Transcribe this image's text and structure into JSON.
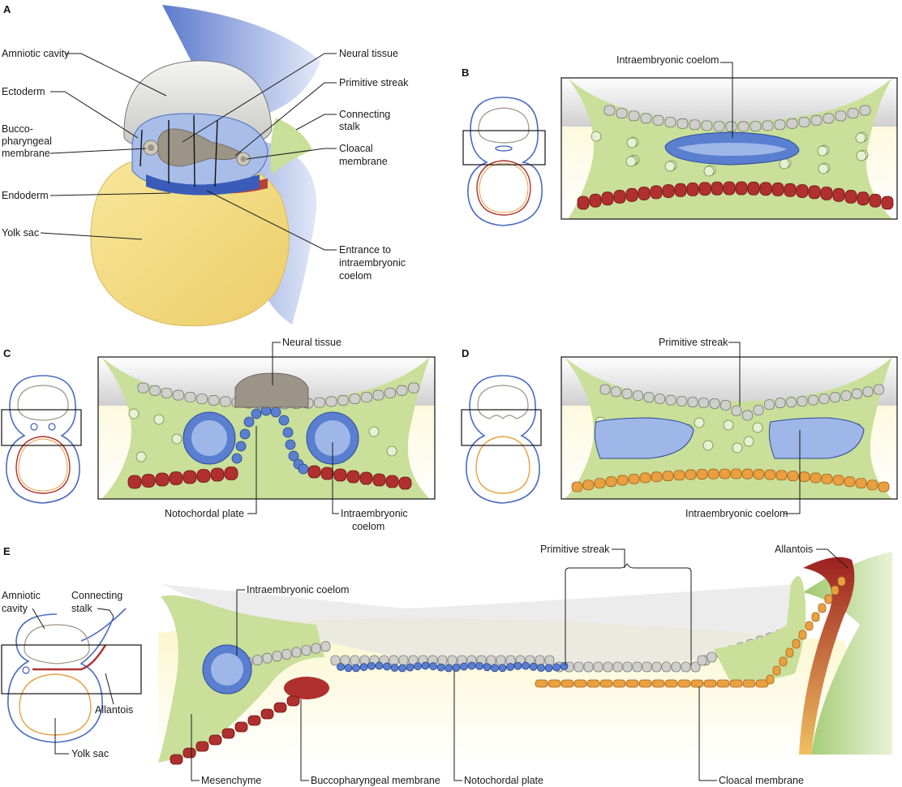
{
  "panels": {
    "a": {
      "letter": "A",
      "labels": {
        "amniotic_cavity": "Amniotic cavity",
        "ectoderm": "Ectoderm",
        "bucco_1": "Bucco-",
        "bucco_2": "pharyngeal",
        "bucco_3": "membrane",
        "endoderm": "Endoderm",
        "yolk_sac": "Yolk sac",
        "neural_tissue": "Neural tissue",
        "primitive_streak": "Primitive streak",
        "connecting_1": "Connecting",
        "connecting_2": "stalk",
        "cloacal_1": "Cloacal",
        "cloacal_2": "membrane",
        "entrance_1": "Entrance to",
        "entrance_2": "intraembryonic",
        "entrance_3": "coelom"
      }
    },
    "b": {
      "letter": "B",
      "labels": {
        "intraembryonic_coelom": "Intraembryonic coelom"
      }
    },
    "c": {
      "letter": "C",
      "labels": {
        "neural_tissue": "Neural tissue",
        "notochordal_plate": "Notochordal plate",
        "coelom_1": "Intraembryonic",
        "coelom_2": "coelom"
      }
    },
    "d": {
      "letter": "D",
      "labels": {
        "primitive_streak": "Primitive streak",
        "intraembryonic_coelom": "Intraembryonic coelom"
      }
    },
    "e": {
      "letter": "E",
      "labels": {
        "amniotic_1": "Amniotic",
        "amniotic_2": "cavity",
        "connecting_1": "Connecting",
        "connecting_2": "stalk",
        "allantois_small": "Allantois",
        "yolk_sac": "Yolk sac",
        "intraembryonic_coelom": "Intraembryonic coelom",
        "primitive_streak": "Primitive streak",
        "allantois": "Allantois",
        "mesenchyme": "Mesenchyme",
        "buccopharyngeal_membrane": "Buccopharyngeal membrane",
        "notochordal_plate": "Notochordal plate",
        "cloacal_membrane": "Cloacal membrane"
      }
    }
  },
  "colors": {
    "mesoderm": "#c9df9a",
    "ectoderm": "#cfcfcb",
    "endoderm": "#b03030",
    "endoderm_hypoblast": "#e8a040",
    "neural": "#9c9486",
    "blue": "#5a7fd0",
    "yolk": "#f2e08a"
  }
}
